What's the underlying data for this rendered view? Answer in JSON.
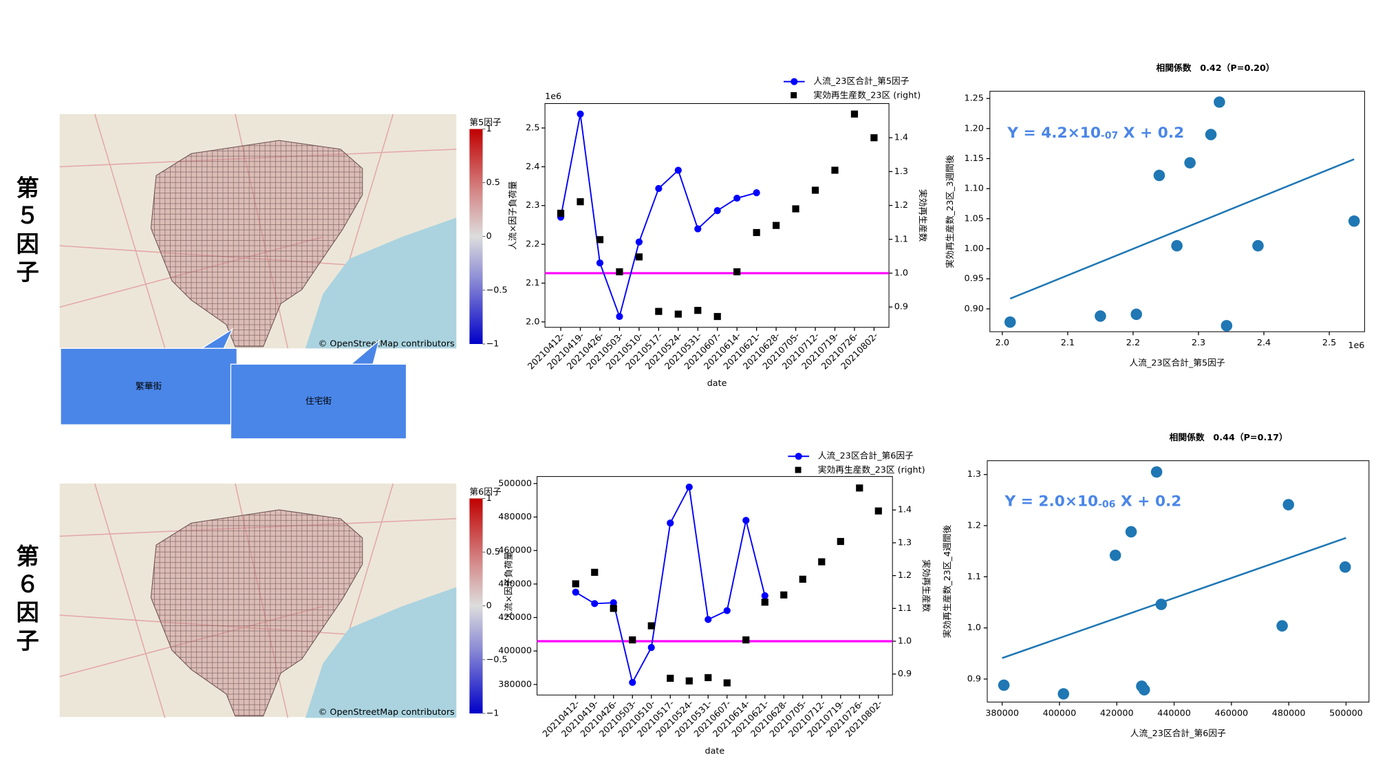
{
  "row_labels": [
    "第５因子",
    "第６因子"
  ],
  "maps": [
    {
      "colorbar": {
        "title": "第5因子",
        "ticks": [
          1,
          0.5,
          0,
          {
            "value": -0.5,
            "label": "−0.5"
          },
          {
            "value": -1,
            "label": "−1"
          }
        ]
      },
      "attribution": "© OpenStreetMap contributors"
    },
    {
      "colorbar": {
        "title": "第6因子",
        "ticks": [
          1,
          0.5,
          0,
          {
            "value": -0.5,
            "label": "−0.5"
          },
          {
            "value": -1,
            "label": "−1"
          }
        ]
      },
      "attribution": "© OpenStreetMap contributors"
    }
  ],
  "callouts": [
    "繁華街",
    "住宅街"
  ],
  "chart_data": [
    {
      "type": "line",
      "categories": [
        "20210412-",
        "20210419-",
        "20210426-",
        "20210503-",
        "20210510-",
        "20210517-",
        "20210524-",
        "20210531-",
        "20210607-",
        "20210614-",
        "20210621-",
        "20210628-",
        "20210705-",
        "20210712-",
        "20210719-",
        "20210726-",
        "20210802-"
      ],
      "series": [
        {
          "name": "人流_23区合計_第5因子",
          "color": "#0000ff",
          "marker": "o",
          "values": [
            2.27,
            2.536,
            2.152,
            2.014,
            2.206,
            2.344,
            2.391,
            2.24,
            2.287,
            2.319,
            2.333,
            null,
            null,
            null,
            null,
            null,
            null
          ]
        },
        {
          "name": "実効再生産数_23区 (right)",
          "color": "#000000",
          "marker": "s",
          "axis": "y2",
          "values": [
            1.177,
            1.211,
            1.099,
            1.004,
            1.048,
            0.887,
            0.879,
            0.89,
            0.872,
            1.004,
            1.12,
            1.141,
            1.19,
            1.245,
            1.304,
            1.47,
            1.4
          ]
        }
      ],
      "reference_line": {
        "value": 1.0,
        "axis": "y2",
        "color": "#ff00ff"
      },
      "ylim": [
        1.986,
        2.563
      ],
      "yticks": [
        {
          "value": 2.0,
          "label": "2.0"
        },
        2.1,
        2.2,
        2.3,
        2.4,
        2.5
      ],
      "y_offset_label": "1e6",
      "y2lim": [
        0.84,
        1.501
      ],
      "y2ticks": [
        0.9,
        {
          "value": 1.0,
          "label": "1.0"
        },
        1.1,
        1.2,
        1.3,
        1.4
      ],
      "y_label": "人流×因子負荷量",
      "y2_label": "実効再生産数",
      "x_label": "date"
    },
    {
      "type": "scatter",
      "title": "相関係数　0.42（P=0.20）",
      "equation": [
        "Y = 4.2×10",
        "-07",
        " X + 0.2"
      ],
      "color": "#1f77b4",
      "x": [
        2.012,
        2.15,
        2.205,
        2.24,
        2.267,
        2.287,
        2.319,
        2.332,
        2.343,
        2.391,
        2.538
      ],
      "values": [
        0.878,
        0.888,
        0.891,
        1.122,
        1.005,
        1.143,
        1.19,
        1.244,
        0.872,
        1.005,
        1.046
      ],
      "trend": {
        "x": [
          2.012,
          2.538
        ],
        "values": [
          0.917,
          1.149
        ]
      },
      "xlim": [
        1.981,
        2.554
      ],
      "xticks": [
        {
          "value": 2.0,
          "label": "2.0"
        },
        2.1,
        2.2,
        2.3,
        2.4,
        2.5
      ],
      "x_offset_label": "1e6",
      "ylim": [
        0.862,
        1.262
      ],
      "yticks": [
        {
          "value": 0.9,
          "label": "0.90"
        },
        0.95,
        {
          "value": 1.0,
          "label": "1.00"
        },
        1.05,
        {
          "value": 1.1,
          "label": "1.10"
        },
        1.15,
        {
          "value": 1.2,
          "label": "1.20"
        },
        1.25
      ],
      "x_label": "人流_23区合計_第5因子",
      "y_label": "実効再生産数_23区_3週間後"
    },
    {
      "type": "line",
      "categories": [
        "20210412-",
        "20210419-",
        "20210426-",
        "20210503-",
        "20210510-",
        "20210517-",
        "20210524-",
        "20210531-",
        "20210607-",
        "20210614-",
        "20210621-",
        "20210628-",
        "20210705-",
        "20210712-",
        "20210719-",
        "20210726-",
        "20210802-"
      ],
      "series": [
        {
          "name": "人流_23区合計_第6因子",
          "color": "#0000ff",
          "marker": "o",
          "values": [
            435100,
            428300,
            428800,
            381200,
            402100,
            476400,
            497900,
            418800,
            424100,
            478000,
            433000,
            null,
            null,
            null,
            null,
            null,
            null
          ]
        },
        {
          "name": "実効再生産数_23区 (right)",
          "color": "#000000",
          "marker": "s",
          "axis": "y2",
          "values": [
            1.175,
            1.21,
            1.1,
            1.004,
            1.047,
            0.887,
            0.879,
            0.889,
            0.873,
            1.004,
            1.119,
            1.141,
            1.189,
            1.242,
            1.304,
            1.467,
            1.397
          ]
        }
      ],
      "reference_line": {
        "value": 1.0,
        "axis": "y2",
        "color": "#ff00ff"
      },
      "ylim": [
        373700,
        504200
      ],
      "yticks": [
        380000,
        400000,
        420000,
        440000,
        460000,
        480000,
        500000
      ],
      "y2lim": [
        0.836,
        1.502
      ],
      "y2ticks": [
        0.9,
        {
          "value": 1.0,
          "label": "1.0"
        },
        1.1,
        1.2,
        1.3,
        1.4
      ],
      "y_label": "人流×因子負荷量",
      "y2_label": "実効再生産数",
      "x_label": "date"
    },
    {
      "type": "scatter",
      "title": "相関係数　0.44（P=0.17）",
      "equation": [
        "Y = 2.0×10",
        "-06",
        " X + 0.2"
      ],
      "color": "#1f77b4",
      "x": [
        380600,
        401400,
        419500,
        425000,
        428700,
        429600,
        433900,
        435500,
        477700,
        479900,
        499700
      ],
      "values": [
        0.888,
        0.871,
        1.142,
        1.188,
        0.886,
        0.879,
        1.305,
        1.046,
        1.004,
        1.241,
        1.119
      ],
      "trend": {
        "x": [
          380000,
          500000
        ],
        "values": [
          0.941,
          1.176
        ]
      },
      "xlim": [
        374800,
        508000
      ],
      "xticks": [
        380000,
        400000,
        420000,
        440000,
        460000,
        480000,
        500000
      ],
      "ylim": [
        0.855,
        1.327
      ],
      "yticks": [
        0.9,
        {
          "value": 1.0,
          "label": "1.0"
        },
        1.1,
        1.2,
        1.3
      ],
      "x_label": "人流_23区合計_第6因子",
      "y_label": "実効再生産数_23区_4週間後"
    }
  ]
}
